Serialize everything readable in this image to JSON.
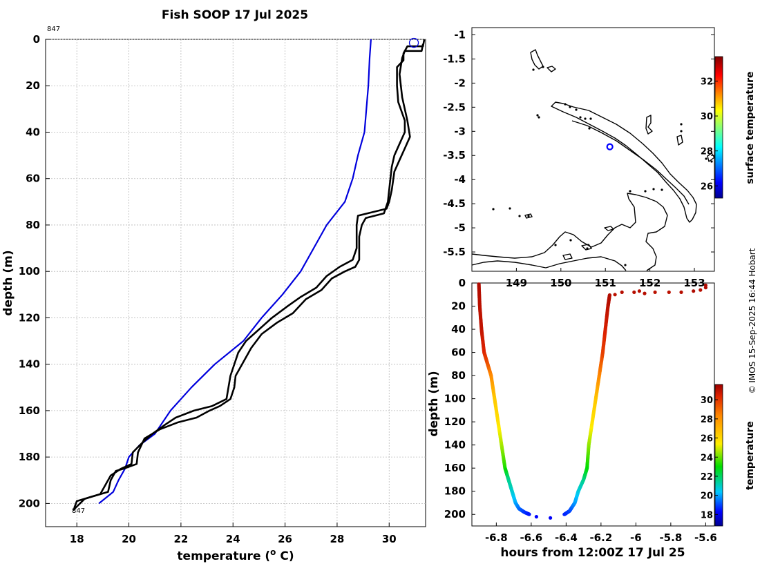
{
  "title": "Fish SOOP 17 Jul 2025",
  "credit": "© IMOS 15-Sep-2025 16:44 Hobart",
  "colors": {
    "blue_profile": "#0000dd",
    "black_profile": "#000000",
    "map_marker": "#0000ff"
  },
  "chart_data": [
    {
      "type": "line",
      "name": "profile",
      "xlabel": "temperature (",
      "xlabel_sup": "o",
      "xlabel_end": " C)",
      "ylabel": "depth (m)",
      "xlim": [
        16.8,
        31.4
      ],
      "ylim": [
        0,
        210
      ],
      "x_ticks": [
        18,
        20,
        22,
        24,
        26,
        28,
        30
      ],
      "y_ticks": [
        0,
        20,
        40,
        60,
        80,
        100,
        120,
        140,
        160,
        180,
        200
      ],
      "grid": true,
      "label_top": "847",
      "label_bottom": "847",
      "marker": {
        "temperature": 30.95,
        "depth": 1.5
      },
      "series": [
        {
          "name": "blue",
          "points": [
            [
              29.3,
              0
            ],
            [
              29.25,
              8
            ],
            [
              29.2,
              20
            ],
            [
              29.05,
              40
            ],
            [
              28.8,
              50
            ],
            [
              28.6,
              60
            ],
            [
              28.3,
              70
            ],
            [
              27.6,
              80
            ],
            [
              27.1,
              90
            ],
            [
              26.6,
              100
            ],
            [
              25.9,
              110
            ],
            [
              25.1,
              120
            ],
            [
              24.4,
              130
            ],
            [
              23.3,
              140
            ],
            [
              22.4,
              150
            ],
            [
              21.6,
              160
            ],
            [
              21.0,
              170
            ],
            [
              20.4,
              175
            ],
            [
              20.0,
              180
            ],
            [
              19.85,
              185
            ],
            [
              19.6,
              190
            ],
            [
              19.4,
              195
            ],
            [
              18.85,
              200
            ]
          ]
        },
        {
          "name": "black-1",
          "points": [
            [
              31.35,
              0
            ],
            [
              31.3,
              3
            ],
            [
              30.7,
              3
            ],
            [
              30.55,
              6
            ],
            [
              30.55,
              9
            ],
            [
              30.3,
              12
            ],
            [
              30.3,
              20
            ],
            [
              30.35,
              27
            ],
            [
              30.6,
              35
            ],
            [
              30.6,
              40
            ],
            [
              30.4,
              45
            ],
            [
              30.2,
              50
            ],
            [
              30.1,
              55
            ],
            [
              30.05,
              60
            ],
            [
              29.95,
              70
            ],
            [
              29.8,
              75
            ],
            [
              29.1,
              77
            ],
            [
              28.95,
              80
            ],
            [
              28.85,
              85
            ],
            [
              28.85,
              95
            ],
            [
              28.7,
              98
            ],
            [
              28.3,
              100
            ],
            [
              27.8,
              103
            ],
            [
              27.4,
              108
            ],
            [
              26.8,
              112
            ],
            [
              26.3,
              118
            ],
            [
              25.7,
              122
            ],
            [
              25.1,
              127
            ],
            [
              24.7,
              133
            ],
            [
              24.35,
              140
            ],
            [
              24.1,
              145
            ],
            [
              24.05,
              150
            ],
            [
              23.9,
              155
            ],
            [
              23.5,
              158
            ],
            [
              23.1,
              160
            ],
            [
              22.6,
              163
            ],
            [
              21.9,
              165
            ],
            [
              21.2,
              168
            ],
            [
              20.6,
              172
            ],
            [
              20.35,
              178
            ],
            [
              20.3,
              183
            ],
            [
              19.8,
              185
            ],
            [
              19.5,
              186
            ],
            [
              19.3,
              190
            ],
            [
              19.2,
              195
            ],
            [
              18.6,
              197
            ],
            [
              18.3,
              198
            ],
            [
              17.85,
              203
            ]
          ]
        },
        {
          "name": "black-2",
          "points": [
            [
              31.3,
              2
            ],
            [
              31.25,
              5
            ],
            [
              30.6,
              5
            ],
            [
              30.5,
              8
            ],
            [
              30.4,
              15
            ],
            [
              30.5,
              25
            ],
            [
              30.7,
              35
            ],
            [
              30.8,
              42
            ],
            [
              30.6,
              47
            ],
            [
              30.4,
              52
            ],
            [
              30.2,
              57
            ],
            [
              30.1,
              65
            ],
            [
              30.0,
              70
            ],
            [
              29.9,
              73
            ],
            [
              28.8,
              76
            ],
            [
              28.75,
              80
            ],
            [
              28.75,
              90
            ],
            [
              28.6,
              95
            ],
            [
              28.1,
              98
            ],
            [
              27.6,
              102
            ],
            [
              27.2,
              107
            ],
            [
              26.6,
              111
            ],
            [
              26.1,
              115
            ],
            [
              25.5,
              120
            ],
            [
              24.9,
              126
            ],
            [
              24.5,
              130
            ],
            [
              24.2,
              135
            ],
            [
              23.9,
              145
            ],
            [
              23.75,
              155
            ],
            [
              23.2,
              158
            ],
            [
              22.5,
              160
            ],
            [
              21.8,
              163
            ],
            [
              21.4,
              166
            ],
            [
              20.9,
              170
            ],
            [
              20.5,
              174
            ],
            [
              20.15,
              178
            ],
            [
              20.1,
              183
            ],
            [
              19.7,
              185
            ],
            [
              19.3,
              188
            ],
            [
              19.1,
              192
            ],
            [
              18.9,
              196
            ],
            [
              18.0,
              199
            ],
            [
              17.9,
              202
            ]
          ]
        }
      ]
    },
    {
      "type": "scatter",
      "name": "map",
      "x_ticks": [
        "149",
        "150",
        "151",
        "152",
        "153"
      ],
      "y_ticks": [
        "-1",
        "-1.5",
        "-2",
        "-2.5",
        "-3",
        "-3.5",
        "-4",
        "-4.5",
        "-5",
        "-5.5"
      ],
      "xlim": [
        148.0,
        153.45
      ],
      "ylim": [
        -5.9,
        -0.85
      ],
      "marker": {
        "lon": 151.1,
        "lat": -3.32
      },
      "colorbar": {
        "label": "surface temperature",
        "ticks": [
          26,
          28,
          30,
          32
        ],
        "range": [
          25.3,
          33.4
        ]
      }
    },
    {
      "type": "scatter",
      "name": "depth-time",
      "xlabel": "hours from 12:00Z 17 Jul 25",
      "ylabel": "depth (m)",
      "xlim": [
        -6.94,
        -5.55
      ],
      "ylim": [
        0,
        210
      ],
      "x_ticks": [
        -6.8,
        -6.6,
        -6.4,
        -6.2,
        -6.0,
        -5.8,
        -5.6
      ],
      "x_tick_labels": [
        "-6.8",
        "-6.6",
        "-6.4",
        "-6.2",
        "-6",
        "-5.8",
        "-5.6"
      ],
      "y_ticks": [
        0,
        20,
        40,
        60,
        80,
        100,
        120,
        140,
        160,
        180,
        200
      ],
      "descent": [
        [
          -6.9,
          1,
          31.2
        ],
        [
          -6.895,
          20,
          31.0
        ],
        [
          -6.885,
          40,
          30.9
        ],
        [
          -6.87,
          60,
          30.4
        ],
        [
          -6.85,
          70,
          29.5
        ],
        [
          -6.83,
          80,
          28.3
        ],
        [
          -6.81,
          100,
          26.5
        ],
        [
          -6.79,
          120,
          25.8
        ],
        [
          -6.77,
          140,
          24.6
        ],
        [
          -6.75,
          160,
          23.3
        ],
        [
          -6.73,
          170,
          21.6
        ],
        [
          -6.71,
          180,
          20.9
        ],
        [
          -6.69,
          190,
          20.1
        ],
        [
          -6.67,
          195,
          19.5
        ],
        [
          -6.64,
          198,
          18.9
        ],
        [
          -6.61,
          200,
          18.5
        ]
      ],
      "ascent": [
        [
          -6.41,
          200,
          18.6
        ],
        [
          -6.38,
          197,
          18.9
        ],
        [
          -6.35,
          190,
          19.8
        ],
        [
          -6.33,
          180,
          20.6
        ],
        [
          -6.3,
          170,
          21.5
        ],
        [
          -6.28,
          160,
          22.9
        ],
        [
          -6.27,
          140,
          24.3
        ],
        [
          -6.25,
          120,
          25.7
        ],
        [
          -6.23,
          100,
          26.5
        ],
        [
          -6.21,
          80,
          28.3
        ],
        [
          -6.19,
          60,
          29.8
        ],
        [
          -6.175,
          40,
          30.5
        ],
        [
          -6.16,
          20,
          31.0
        ],
        [
          -6.15,
          10,
          31.2
        ]
      ],
      "points": [
        [
          -6.57,
          202,
          18.3
        ],
        [
          -6.49,
          203,
          18.2
        ],
        [
          -6.12,
          10,
          31.0
        ],
        [
          -6.08,
          8,
          31.1
        ],
        [
          -6.01,
          8,
          31.1
        ],
        [
          -5.98,
          7,
          31.1
        ],
        [
          -5.95,
          9,
          31.1
        ],
        [
          -5.89,
          8,
          31.0
        ],
        [
          -5.81,
          8,
          31.0
        ],
        [
          -5.74,
          8,
          31.1
        ],
        [
          -5.67,
          7,
          31.2
        ],
        [
          -5.63,
          6,
          31.1
        ],
        [
          -5.6,
          2,
          31.2
        ],
        [
          -5.6,
          4,
          31.2
        ]
      ],
      "colorbar": {
        "label": "temperature",
        "ticks": [
          18,
          20,
          22,
          24,
          26,
          28,
          30
        ],
        "range": [
          16.8,
          31.6
        ]
      }
    }
  ]
}
